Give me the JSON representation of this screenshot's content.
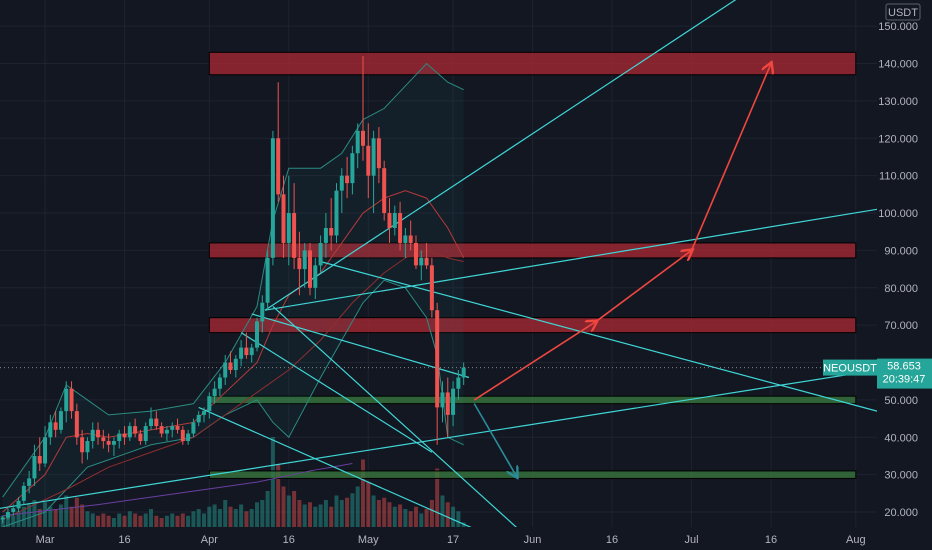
{
  "chart_data": {
    "type": "candlestick",
    "symbol": "NEOUSDT",
    "quote_currency": "USDT",
    "last_price": "58.653",
    "countdown": "20:39:47",
    "y_axis": {
      "ticks": [
        "20.000",
        "30.000",
        "40.000",
        "50.000",
        "60.000",
        "70.000",
        "80.000",
        "90.000",
        "100.000",
        "110.000",
        "120.000",
        "130.000",
        "140.000",
        "150.000"
      ],
      "ylim": [
        16,
        157
      ]
    },
    "x_axis": {
      "ticks": [
        {
          "label": "Mar",
          "day": 0
        },
        {
          "label": "16",
          "day": 15
        },
        {
          "label": "Apr",
          "day": 31
        },
        {
          "label": "16",
          "day": 46
        },
        {
          "label": "May",
          "day": 61
        },
        {
          "label": "17",
          "day": 77
        },
        {
          "label": "Jun",
          "day": 92
        },
        {
          "label": "16",
          "day": 107
        },
        {
          "label": "Jul",
          "day": 122
        },
        {
          "label": "16",
          "day": 137
        },
        {
          "label": "Aug",
          "day": 153
        }
      ],
      "xlim": [
        -8.5,
        157
      ]
    },
    "candles": [
      [
        -8,
        18,
        19,
        17,
        18.5
      ],
      [
        -7,
        18.5,
        21,
        18,
        20
      ],
      [
        -6,
        20,
        22,
        19,
        21
      ],
      [
        -5,
        21,
        24,
        20,
        23
      ],
      [
        -4,
        23,
        28,
        22,
        27
      ],
      [
        -3,
        27,
        31,
        25,
        29
      ],
      [
        -2,
        29,
        38,
        27,
        35
      ],
      [
        -1,
        35,
        40,
        31,
        33
      ],
      [
        0,
        33,
        43,
        32,
        40
      ],
      [
        1,
        40,
        46,
        38,
        44
      ],
      [
        2,
        44,
        47,
        40,
        42
      ],
      [
        3,
        42,
        48,
        41,
        47
      ],
      [
        4,
        47,
        55,
        44,
        53
      ],
      [
        5,
        53,
        55,
        45,
        47
      ],
      [
        6,
        47,
        49,
        38,
        40
      ],
      [
        7,
        40,
        42,
        33,
        36
      ],
      [
        8,
        36,
        40,
        34,
        39
      ],
      [
        9,
        39,
        44,
        37,
        42
      ],
      [
        10,
        42,
        44,
        38,
        40
      ],
      [
        11,
        40,
        42,
        37,
        39
      ],
      [
        12,
        39,
        41,
        36,
        38
      ],
      [
        13,
        38,
        40,
        35,
        39
      ],
      [
        14,
        39,
        42,
        37,
        41
      ],
      [
        15,
        41,
        43,
        38,
        40
      ],
      [
        16,
        40,
        44,
        39,
        43
      ],
      [
        17,
        43,
        45,
        40,
        41
      ],
      [
        18,
        41,
        42,
        38,
        39
      ],
      [
        19,
        39,
        44,
        38,
        43
      ],
      [
        20,
        43,
        48,
        42,
        45
      ],
      [
        21,
        45,
        47,
        42,
        43
      ],
      [
        22,
        43,
        44,
        40,
        41
      ],
      [
        23,
        41,
        43,
        39,
        42
      ],
      [
        24,
        42,
        44,
        40,
        43
      ],
      [
        25,
        43,
        45,
        41,
        42
      ],
      [
        26,
        42,
        43,
        38,
        39
      ],
      [
        27,
        39,
        42,
        38,
        41
      ],
      [
        28,
        41,
        45,
        40,
        44
      ],
      [
        29,
        44,
        47,
        43,
        46
      ],
      [
        30,
        46,
        48,
        44,
        47
      ],
      [
        31,
        47,
        52,
        45,
        51
      ],
      [
        32,
        51,
        55,
        49,
        53
      ],
      [
        33,
        53,
        57,
        51,
        56
      ],
      [
        34,
        56,
        62,
        54,
        60
      ],
      [
        35,
        60,
        63,
        57,
        58
      ],
      [
        36,
        58,
        62,
        56,
        61
      ],
      [
        37,
        61,
        66,
        59,
        64
      ],
      [
        38,
        64,
        68,
        61,
        62
      ],
      [
        39,
        62,
        65,
        60,
        64
      ],
      [
        40,
        64,
        72,
        63,
        71
      ],
      [
        41,
        71,
        78,
        68,
        76
      ],
      [
        42,
        76,
        90,
        74,
        88
      ],
      [
        43,
        88,
        122,
        86,
        120
      ],
      [
        44,
        120,
        135,
        103,
        105
      ],
      [
        45,
        105,
        110,
        88,
        92
      ],
      [
        46,
        92,
        110,
        86,
        100
      ],
      [
        47,
        100,
        108,
        85,
        88
      ],
      [
        48,
        88,
        95,
        78,
        85
      ],
      [
        49,
        85,
        92,
        80,
        90
      ],
      [
        50,
        90,
        92,
        78,
        80
      ],
      [
        51,
        80,
        88,
        77,
        86
      ],
      [
        52,
        86,
        94,
        84,
        92
      ],
      [
        53,
        92,
        100,
        88,
        96
      ],
      [
        54,
        96,
        104,
        90,
        94
      ],
      [
        55,
        94,
        108,
        92,
        106
      ],
      [
        56,
        106,
        112,
        100,
        110
      ],
      [
        57,
        110,
        115,
        104,
        108
      ],
      [
        58,
        108,
        118,
        105,
        116
      ],
      [
        59,
        116,
        124,
        112,
        122
      ],
      [
        60,
        122,
        142,
        114,
        118
      ],
      [
        61,
        118,
        124,
        104,
        110
      ],
      [
        62,
        110,
        122,
        100,
        120
      ],
      [
        63,
        120,
        123,
        108,
        112
      ],
      [
        64,
        112,
        114,
        98,
        100
      ],
      [
        65,
        100,
        104,
        92,
        96
      ],
      [
        66,
        96,
        102,
        94,
        100
      ],
      [
        67,
        100,
        103,
        90,
        92
      ],
      [
        68,
        92,
        96,
        88,
        94
      ],
      [
        69,
        94,
        98,
        90,
        92
      ],
      [
        70,
        92,
        94,
        85,
        86
      ],
      [
        71,
        86,
        90,
        82,
        88
      ],
      [
        72,
        88,
        92,
        85,
        86
      ],
      [
        73,
        86,
        88,
        72,
        74
      ],
      [
        74,
        74,
        76,
        38,
        48
      ],
      [
        75,
        48,
        55,
        44,
        52
      ],
      [
        76,
        52,
        56,
        40,
        46
      ],
      [
        77,
        46,
        55,
        43,
        53
      ],
      [
        78,
        53,
        58,
        50,
        56
      ],
      [
        79,
        56,
        60,
        54,
        58.653
      ]
    ],
    "volumes": [
      [
        -8,
        5
      ],
      [
        -7,
        6
      ],
      [
        -6,
        5
      ],
      [
        -5,
        7
      ],
      [
        -4,
        9
      ],
      [
        -3,
        10
      ],
      [
        -2,
        12
      ],
      [
        -1,
        8
      ],
      [
        0,
        11
      ],
      [
        1,
        9
      ],
      [
        2,
        8
      ],
      [
        3,
        10
      ],
      [
        4,
        14
      ],
      [
        5,
        9
      ],
      [
        6,
        13
      ],
      [
        7,
        10
      ],
      [
        8,
        7
      ],
      [
        9,
        6
      ],
      [
        10,
        5
      ],
      [
        11,
        6
      ],
      [
        12,
        5
      ],
      [
        13,
        4
      ],
      [
        14,
        6
      ],
      [
        15,
        5
      ],
      [
        16,
        7
      ],
      [
        17,
        6
      ],
      [
        18,
        5
      ],
      [
        19,
        6
      ],
      [
        20,
        8
      ],
      [
        21,
        5
      ],
      [
        22,
        4
      ],
      [
        23,
        5
      ],
      [
        24,
        6
      ],
      [
        25,
        5
      ],
      [
        26,
        6
      ],
      [
        27,
        5
      ],
      [
        28,
        7
      ],
      [
        29,
        8
      ],
      [
        30,
        6
      ],
      [
        31,
        9
      ],
      [
        32,
        10
      ],
      [
        33,
        8
      ],
      [
        34,
        12
      ],
      [
        35,
        9
      ],
      [
        36,
        8
      ],
      [
        37,
        10
      ],
      [
        38,
        7
      ],
      [
        39,
        8
      ],
      [
        40,
        11
      ],
      [
        41,
        12
      ],
      [
        42,
        16
      ],
      [
        43,
        40
      ],
      [
        44,
        28
      ],
      [
        45,
        18
      ],
      [
        46,
        14
      ],
      [
        47,
        16
      ],
      [
        48,
        12
      ],
      [
        49,
        10
      ],
      [
        50,
        11
      ],
      [
        51,
        9
      ],
      [
        52,
        10
      ],
      [
        53,
        12
      ],
      [
        54,
        9
      ],
      [
        55,
        14
      ],
      [
        56,
        12
      ],
      [
        57,
        13
      ],
      [
        58,
        15
      ],
      [
        59,
        18
      ],
      [
        60,
        30
      ],
      [
        61,
        20
      ],
      [
        62,
        14
      ],
      [
        63,
        12
      ],
      [
        64,
        13
      ],
      [
        65,
        11
      ],
      [
        66,
        9
      ],
      [
        67,
        10
      ],
      [
        68,
        8
      ],
      [
        69,
        7
      ],
      [
        70,
        9
      ],
      [
        71,
        6
      ],
      [
        72,
        8
      ],
      [
        73,
        12
      ],
      [
        74,
        26
      ],
      [
        75,
        14
      ],
      [
        76,
        11
      ],
      [
        77,
        9
      ],
      [
        78,
        7
      ],
      [
        79,
        2
      ]
    ],
    "bollinger_upper": [
      [
        -8,
        24
      ],
      [
        0,
        40
      ],
      [
        4,
        54
      ],
      [
        8,
        50
      ],
      [
        12,
        46
      ],
      [
        20,
        47
      ],
      [
        28,
        49
      ],
      [
        34,
        60
      ],
      [
        40,
        75
      ],
      [
        43,
        98
      ],
      [
        46,
        112
      ],
      [
        52,
        112
      ],
      [
        56,
        116
      ],
      [
        60,
        125
      ],
      [
        64,
        128
      ],
      [
        68,
        134
      ],
      [
        72,
        140
      ],
      [
        76,
        135
      ],
      [
        79,
        133
      ]
    ],
    "bollinger_lower": [
      [
        -8,
        16
      ],
      [
        0,
        20
      ],
      [
        4,
        26
      ],
      [
        8,
        32
      ],
      [
        12,
        34
      ],
      [
        20,
        38
      ],
      [
        28,
        40
      ],
      [
        34,
        46
      ],
      [
        40,
        50
      ],
      [
        43,
        44
      ],
      [
        46,
        40
      ],
      [
        52,
        56
      ],
      [
        56,
        66
      ],
      [
        60,
        76
      ],
      [
        64,
        82
      ],
      [
        68,
        80
      ],
      [
        72,
        72
      ],
      [
        74,
        62
      ],
      [
        76,
        40
      ],
      [
        79,
        38
      ]
    ],
    "basis_ma": [
      [
        -8,
        20
      ],
      [
        0,
        30
      ],
      [
        4,
        40
      ],
      [
        8,
        41
      ],
      [
        12,
        40
      ],
      [
        20,
        42
      ],
      [
        28,
        44
      ],
      [
        34,
        52
      ],
      [
        40,
        60
      ],
      [
        43,
        70
      ],
      [
        46,
        78
      ],
      [
        52,
        84
      ],
      [
        56,
        92
      ],
      [
        60,
        100
      ],
      [
        64,
        104
      ],
      [
        68,
        106
      ],
      [
        72,
        104
      ],
      [
        76,
        96
      ],
      [
        79,
        88
      ]
    ],
    "slow_ma": [
      [
        -8,
        18
      ],
      [
        4,
        26
      ],
      [
        12,
        32
      ],
      [
        20,
        36
      ],
      [
        28,
        40
      ],
      [
        34,
        46
      ],
      [
        40,
        52
      ],
      [
        46,
        58
      ],
      [
        52,
        66
      ],
      [
        58,
        76
      ],
      [
        64,
        84
      ],
      [
        68,
        88
      ],
      [
        72,
        90
      ],
      [
        76,
        88
      ],
      [
        79,
        87
      ]
    ],
    "long_ma": [
      [
        -8,
        19
      ],
      [
        10,
        22
      ],
      [
        20,
        24
      ],
      [
        30,
        26
      ],
      [
        40,
        28
      ],
      [
        50,
        31
      ],
      [
        58,
        33
      ]
    ],
    "zones": [
      {
        "type": "resistance",
        "from": 137,
        "to": 143
      },
      {
        "type": "resistance",
        "from": 88,
        "to": 92
      },
      {
        "type": "resistance",
        "from": 68,
        "to": 72
      },
      {
        "type": "support",
        "from": 49,
        "to": 51
      },
      {
        "type": "support",
        "from": 29,
        "to": 31
      }
    ],
    "zone_span_days": [
      31,
      153
    ],
    "trendlines": [
      {
        "from": [
          -8.5,
          21
        ],
        "to": [
          157,
          58
        ]
      },
      {
        "from": [
          41.5,
          74
        ],
        "to": [
          157,
          101
        ]
      },
      {
        "from": [
          41.5,
          74
        ],
        "to": [
          142,
          168
        ]
      },
      {
        "from": [
          39,
          73
        ],
        "to": [
          80,
          56
        ]
      },
      {
        "from": [
          52,
          87
        ],
        "to": [
          157,
          47
        ]
      },
      {
        "from": [
          29,
          48
        ],
        "to": [
          101,
          3
        ]
      },
      {
        "from": [
          37,
          68
        ],
        "to": [
          73,
          36
        ]
      },
      {
        "from": [
          43,
          75
        ],
        "to": [
          99,
          3
        ]
      }
    ],
    "projection_path": [
      [
        81,
        50
      ],
      [
        104,
        71
      ],
      [
        122,
        90
      ],
      [
        137,
        140
      ]
    ],
    "bearish_path": [
      [
        81,
        49
      ],
      [
        89,
        29.5
      ]
    ]
  }
}
